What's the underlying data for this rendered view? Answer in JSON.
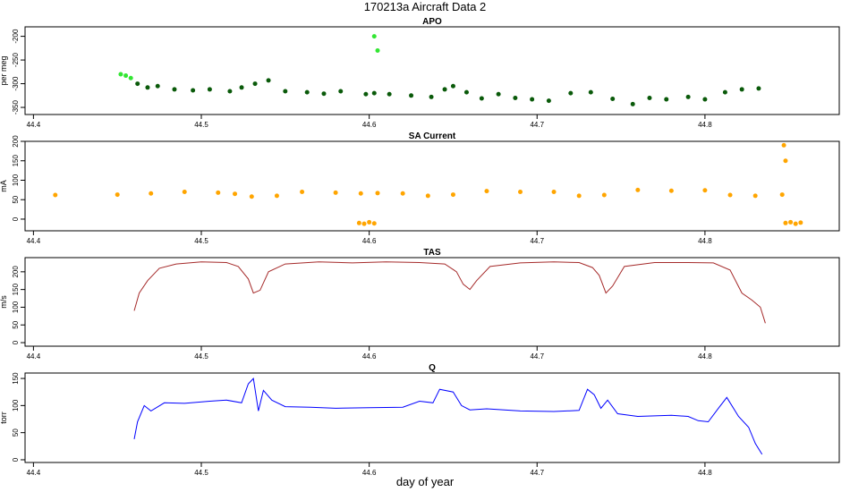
{
  "title": "170213a   Aircraft Data 2",
  "xlabel": "day of year",
  "colors": {
    "apo_light": "#33e633",
    "apo_dark": "#0a5a0a",
    "sa_current": "#ffa500",
    "tas": "#a52a2a",
    "q": "#0000ff"
  },
  "chart_data": [
    {
      "type": "scatter",
      "title": "APO",
      "ylabel": "per meg",
      "xlim": [
        44.395,
        44.88
      ],
      "ylim": [
        -365,
        -180
      ],
      "xticks": [
        44.4,
        44.5,
        44.6,
        44.7,
        44.8
      ],
      "xtick_labels": [
        "44.4",
        "44.5",
        "44.6",
        "44.7",
        "44.8"
      ],
      "yticks": [
        -350,
        -300,
        -250,
        -200
      ],
      "ytick_labels": [
        "-350",
        "-300",
        "-250",
        "-200"
      ],
      "series": [
        {
          "color": "light-green",
          "x": [
            44.452,
            44.455,
            44.458,
            44.603,
            44.605
          ],
          "y": [
            -280,
            -283,
            -288,
            -200,
            -230
          ]
        },
        {
          "color": "dark-green",
          "x": [
            44.462,
            44.468,
            44.474,
            44.484,
            44.495,
            44.505,
            44.517,
            44.524,
            44.532,
            44.54,
            44.55,
            44.563,
            44.573,
            44.583,
            44.598,
            44.603,
            44.612,
            44.625,
            44.637,
            44.645,
            44.65,
            44.658,
            44.667,
            44.677,
            44.687,
            44.697,
            44.707,
            44.72,
            44.732,
            44.745,
            44.757,
            44.767,
            44.777,
            44.79,
            44.8,
            44.812,
            44.822,
            44.832
          ],
          "y": [
            -300,
            -308,
            -305,
            -312,
            -314,
            -312,
            -316,
            -308,
            -300,
            -293,
            -316,
            -318,
            -321,
            -316,
            -322,
            -320,
            -322,
            -325,
            -328,
            -312,
            -305,
            -318,
            -331,
            -322,
            -330,
            -333,
            -336,
            -320,
            -318,
            -332,
            -343,
            -330,
            -333,
            -328,
            -333,
            -318,
            -312,
            -310
          ]
        }
      ]
    },
    {
      "type": "scatter",
      "title": "SA Current",
      "ylabel": "mA",
      "color": "orange",
      "xlim": [
        44.395,
        44.88
      ],
      "ylim": [
        -30,
        200
      ],
      "xticks": [
        44.4,
        44.5,
        44.6,
        44.7,
        44.8
      ],
      "xtick_labels": [
        "44.4",
        "44.5",
        "44.6",
        "44.7",
        "44.8"
      ],
      "yticks": [
        0,
        50,
        100,
        150,
        200
      ],
      "ytick_labels": [
        "0",
        "50",
        "100",
        "150",
        "200"
      ],
      "x": [
        44.413,
        44.45,
        44.47,
        44.49,
        44.51,
        44.52,
        44.53,
        44.545,
        44.56,
        44.58,
        44.595,
        44.605,
        44.62,
        44.635,
        44.65,
        44.67,
        44.69,
        44.71,
        44.725,
        44.74,
        44.76,
        44.78,
        44.8,
        44.815,
        44.83,
        44.846
      ],
      "y": [
        62,
        63,
        66,
        70,
        68,
        65,
        58,
        60,
        70,
        68,
        66,
        67,
        66,
        60,
        63,
        72,
        70,
        70,
        60,
        62,
        75,
        73,
        74,
        62,
        60,
        63
      ],
      "outliers": [
        {
          "x": [
            44.594,
            44.597,
            44.6,
            44.603
          ],
          "y": [
            -10,
            -12,
            -8,
            -11
          ]
        },
        {
          "x": [
            44.848,
            44.851,
            44.854,
            44.857
          ],
          "y": [
            -10,
            -8,
            -12,
            -9
          ]
        },
        {
          "x": [
            44.847,
            44.848
          ],
          "y": [
            190,
            150
          ]
        }
      ]
    },
    {
      "type": "line",
      "title": "TAS",
      "ylabel": "m/s",
      "color": "brown",
      "xlim": [
        44.395,
        44.88
      ],
      "ylim": [
        -10,
        240
      ],
      "xticks": [
        44.4,
        44.5,
        44.6,
        44.7,
        44.8
      ],
      "xtick_labels": [
        "44.4",
        "44.5",
        "44.6",
        "44.7",
        "44.8"
      ],
      "yticks": [
        0,
        50,
        100,
        150,
        200
      ],
      "ytick_labels": [
        "0",
        "50",
        "100",
        "150",
        "200"
      ],
      "x": [
        44.46,
        44.463,
        44.468,
        44.475,
        44.485,
        44.5,
        44.515,
        44.522,
        44.528,
        44.531,
        44.535,
        44.54,
        44.55,
        44.57,
        44.59,
        44.61,
        44.63,
        44.645,
        44.652,
        44.656,
        44.66,
        44.664,
        44.672,
        44.69,
        44.71,
        44.725,
        44.733,
        44.737,
        44.741,
        44.745,
        44.752,
        44.77,
        44.79,
        44.805,
        44.815,
        44.822,
        44.828,
        44.833,
        44.836
      ],
      "y": [
        90,
        140,
        175,
        210,
        222,
        228,
        226,
        215,
        180,
        140,
        148,
        200,
        222,
        228,
        225,
        228,
        226,
        222,
        200,
        165,
        150,
        175,
        215,
        225,
        228,
        226,
        212,
        190,
        140,
        160,
        215,
        226,
        226,
        225,
        205,
        140,
        120,
        100,
        55
      ]
    },
    {
      "type": "line",
      "title": "Q",
      "ylabel": "torr",
      "color": "blue",
      "xlim": [
        44.395,
        44.88
      ],
      "ylim": [
        -5,
        160
      ],
      "xticks": [
        44.4,
        44.5,
        44.6,
        44.7,
        44.8
      ],
      "xtick_labels": [
        "44.4",
        "44.5",
        "44.6",
        "44.7",
        "44.8"
      ],
      "yticks": [
        0,
        50,
        100,
        150
      ],
      "ytick_labels": [
        "0",
        "50",
        "100",
        "150"
      ],
      "x": [
        44.46,
        44.462,
        44.466,
        44.47,
        44.478,
        44.49,
        44.505,
        44.515,
        44.524,
        44.528,
        44.531,
        44.534,
        44.537,
        44.542,
        44.55,
        44.565,
        44.58,
        44.6,
        44.62,
        44.63,
        44.638,
        44.642,
        44.65,
        44.655,
        44.66,
        44.67,
        44.69,
        44.71,
        44.725,
        44.73,
        44.734,
        44.738,
        44.742,
        44.748,
        44.76,
        44.78,
        44.79,
        44.796,
        44.802,
        44.808,
        44.813,
        44.82,
        44.826,
        44.83,
        44.834
      ],
      "y": [
        38,
        70,
        100,
        90,
        105,
        104,
        108,
        110,
        105,
        140,
        150,
        90,
        128,
        110,
        98,
        97,
        95,
        96,
        97,
        108,
        105,
        130,
        125,
        100,
        92,
        94,
        90,
        89,
        91,
        130,
        120,
        95,
        110,
        85,
        80,
        82,
        80,
        72,
        70,
        95,
        115,
        80,
        60,
        30,
        10
      ]
    }
  ]
}
